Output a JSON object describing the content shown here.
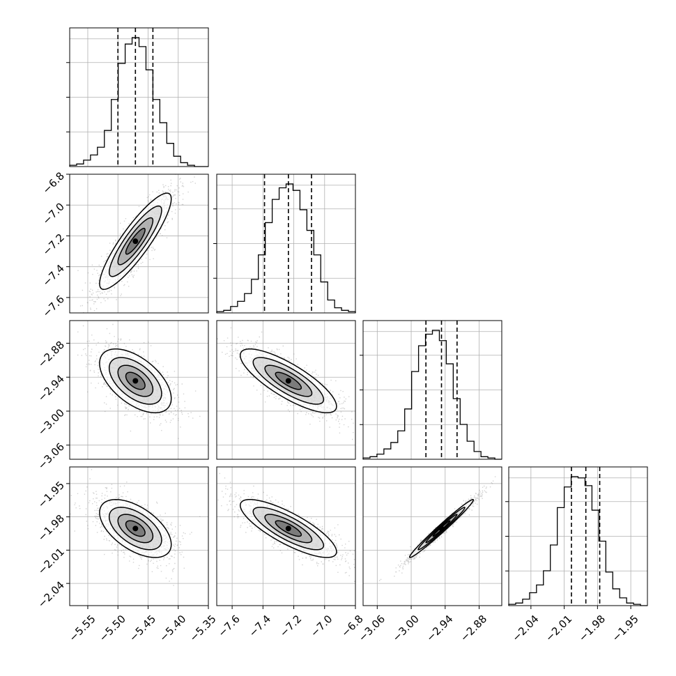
{
  "chart_data": {
    "type": "corner",
    "parameters": [
      {
        "range": [
          -5.58,
          -5.35
        ],
        "ticks": [
          -5.55,
          -5.5,
          -5.45,
          -5.4,
          -5.35
        ],
        "tick_labels": [
          "−5.55",
          "−5.50",
          "−5.45",
          "−5.40",
          "−5.35"
        ],
        "median": -5.471,
        "quantiles": [
          -5.5,
          -5.471,
          -5.442
        ],
        "hist_counts": [
          1,
          2,
          5,
          9,
          15,
          28,
          52,
          80,
          95,
          100,
          93,
          75,
          52,
          34,
          18,
          8,
          3,
          1,
          0,
          0
        ],
        "hist_max_frac": 0.93
      },
      {
        "range": [
          -7.7,
          -6.8
        ],
        "ticks": [
          -7.6,
          -7.4,
          -7.2,
          -7.0,
          -6.8
        ],
        "tick_labels": [
          "−7.6",
          "−7.4",
          "−7.2",
          "−7.0",
          "−6.8"
        ],
        "median": -7.235,
        "quantiles": [
          -7.39,
          -7.235,
          -7.085
        ],
        "hist_counts": [
          1,
          2,
          5,
          9,
          15,
          26,
          45,
          70,
          88,
          97,
          100,
          95,
          80,
          64,
          45,
          24,
          10,
          4,
          2,
          1
        ],
        "hist_max_frac": 0.93
      },
      {
        "range": [
          -3.085,
          -2.84
        ],
        "ticks": [
          -3.06,
          -3.0,
          -2.94,
          -2.88
        ],
        "tick_labels": [
          "−3.06",
          "−3.00",
          "−2.94",
          "−2.88"
        ],
        "median": -2.9465,
        "quantiles": [
          -2.974,
          -2.9465,
          -2.919
        ],
        "hist_counts": [
          1,
          2,
          4,
          8,
          13,
          22,
          39,
          68,
          88,
          97,
          100,
          92,
          74,
          47,
          27,
          14,
          6,
          2,
          1,
          0
        ],
        "hist_max_frac": 0.93
      },
      {
        "range": [
          -2.06,
          -1.935
        ],
        "ticks": [
          -2.04,
          -2.01,
          -1.98,
          -1.95
        ],
        "tick_labels": [
          "−2.04",
          "−2.01",
          "−1.98",
          "−1.95"
        ],
        "median": -1.9905,
        "quantiles": [
          -2.0035,
          -1.9905,
          -1.978
        ],
        "hist_counts": [
          1,
          2,
          5,
          10,
          16,
          27,
          47,
          76,
          92,
          100,
          99,
          93,
          74,
          50,
          26,
          13,
          6,
          2,
          1,
          0
        ],
        "hist_max_frac": 0.93
      }
    ],
    "pairs": [
      {
        "i": 1,
        "j": 0,
        "corr": 0.88
      },
      {
        "i": 2,
        "j": 0,
        "corr": -0.55
      },
      {
        "i": 2,
        "j": 1,
        "corr": -0.8
      },
      {
        "i": 3,
        "j": 0,
        "corr": -0.55
      },
      {
        "i": 3,
        "j": 1,
        "corr": -0.8
      },
      {
        "i": 3,
        "j": 2,
        "corr": 0.985
      }
    ],
    "contour_levels": [
      {
        "k": 0.75,
        "fill": "#ffffff"
      },
      {
        "k": 1.25,
        "fill": "#c7c7c7"
      },
      {
        "k": 1.75,
        "fill": "#8f8f8f"
      },
      {
        "k": 2.3,
        "fill": "#505050"
      }
    ],
    "grid": true,
    "colors": {
      "line": "#000000",
      "grid": "#b0b0b0",
      "points": "#7f7f7f"
    }
  }
}
